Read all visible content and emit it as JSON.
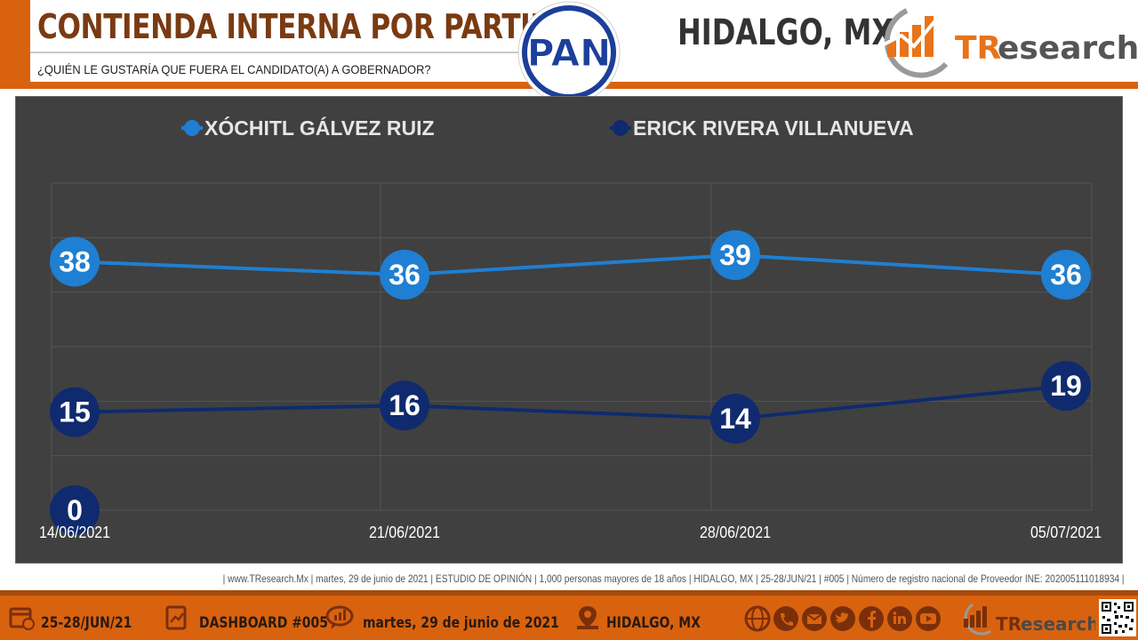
{
  "header": {
    "title": "CONTIENDA INTERNA POR PARTIDO",
    "question": "¿QUIÉN LE GUSTARÍA QUE FUERA EL CANDIDATO(A) A GOBERNADOR?",
    "party_logo_text": "PAN",
    "state": "HIDALGO, MX",
    "brand_tr": "TR",
    "brand_rest": "esearch"
  },
  "chart_data": {
    "type": "line",
    "categories": [
      "14/06/2021",
      "21/06/2021",
      "28/06/2021",
      "05/07/2021"
    ],
    "series": [
      {
        "name": "XÓCHITL GÁLVEZ RUIZ",
        "values": [
          38,
          36,
          39,
          36
        ],
        "color": "#1f7fd2"
      },
      {
        "name": "ERICK RIVERA VILLANUEVA",
        "values": [
          15,
          16,
          14,
          19
        ],
        "color": "#0f2a6e"
      }
    ],
    "extra_label": "0",
    "ylim": [
      0,
      50
    ],
    "grid": true,
    "legend_position": "top"
  },
  "footer": {
    "text": "| www.TResearch.Mx | martes, 29 de junio de 2021 | ESTUDIO DE OPINIÓN | 1,000 personas mayores de 18 años | HIDALGO, MX | 25-28/JUN/21 | #005 | Número de registro nacional de Proveedor INE: 202005111018934 |"
  },
  "bottom_bar": {
    "dates": "25-28/JUN/21",
    "dashboard": "DASHBOARD #005",
    "date_long": "martes, 29 de junio de 2021",
    "location": "HIDALGO, MX",
    "brand_tr": "TR",
    "brand_rest": "esearch"
  },
  "colors": {
    "accent": "#d9620f",
    "title": "#7a3a12",
    "panel": "#404040"
  }
}
